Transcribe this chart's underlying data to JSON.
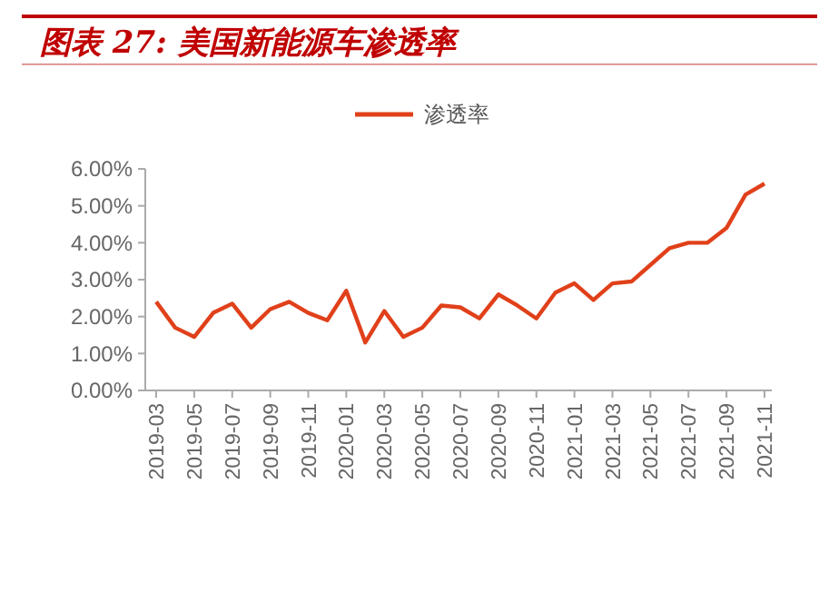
{
  "chart_data": {
    "type": "line",
    "title": "图表 27:  美国新能源车渗透率",
    "categories": [
      "2019-03",
      null,
      "2019-05",
      null,
      "2019-07",
      null,
      "2019-09",
      null,
      "2019-11",
      null,
      "2020-01",
      null,
      "2020-03",
      null,
      "2020-05",
      null,
      "2020-07",
      null,
      "2020-09",
      null,
      "2020-11",
      null,
      "2021-01",
      null,
      "2021-03",
      null,
      "2021-05",
      null,
      "2021-07",
      null,
      "2021-09",
      null,
      "2021-11"
    ],
    "series": [
      {
        "name": "渗透率",
        "color": "#e0401a",
        "values": [
          2.4,
          1.7,
          1.45,
          2.1,
          2.35,
          1.7,
          2.2,
          2.4,
          2.1,
          1.9,
          2.7,
          1.3,
          2.15,
          1.45,
          1.7,
          2.3,
          2.25,
          1.95,
          2.6,
          2.3,
          1.95,
          2.65,
          2.9,
          2.45,
          2.9,
          2.95,
          3.4,
          3.85,
          4.0,
          4.0,
          4.4,
          5.3,
          5.6
        ]
      }
    ],
    "ylim": [
      0,
      6
    ],
    "yticks": [
      {
        "value": 0,
        "label": "0.00%"
      },
      {
        "value": 1,
        "label": "1.00%"
      },
      {
        "value": 2,
        "label": "2.00%"
      },
      {
        "value": 3,
        "label": "3.00%"
      },
      {
        "value": 4,
        "label": "4.00%"
      },
      {
        "value": 5,
        "label": "5.00%"
      },
      {
        "value": 6,
        "label": "6.00%"
      }
    ],
    "legend": "top",
    "grid": false,
    "marker": "none",
    "line_style": "solid"
  }
}
